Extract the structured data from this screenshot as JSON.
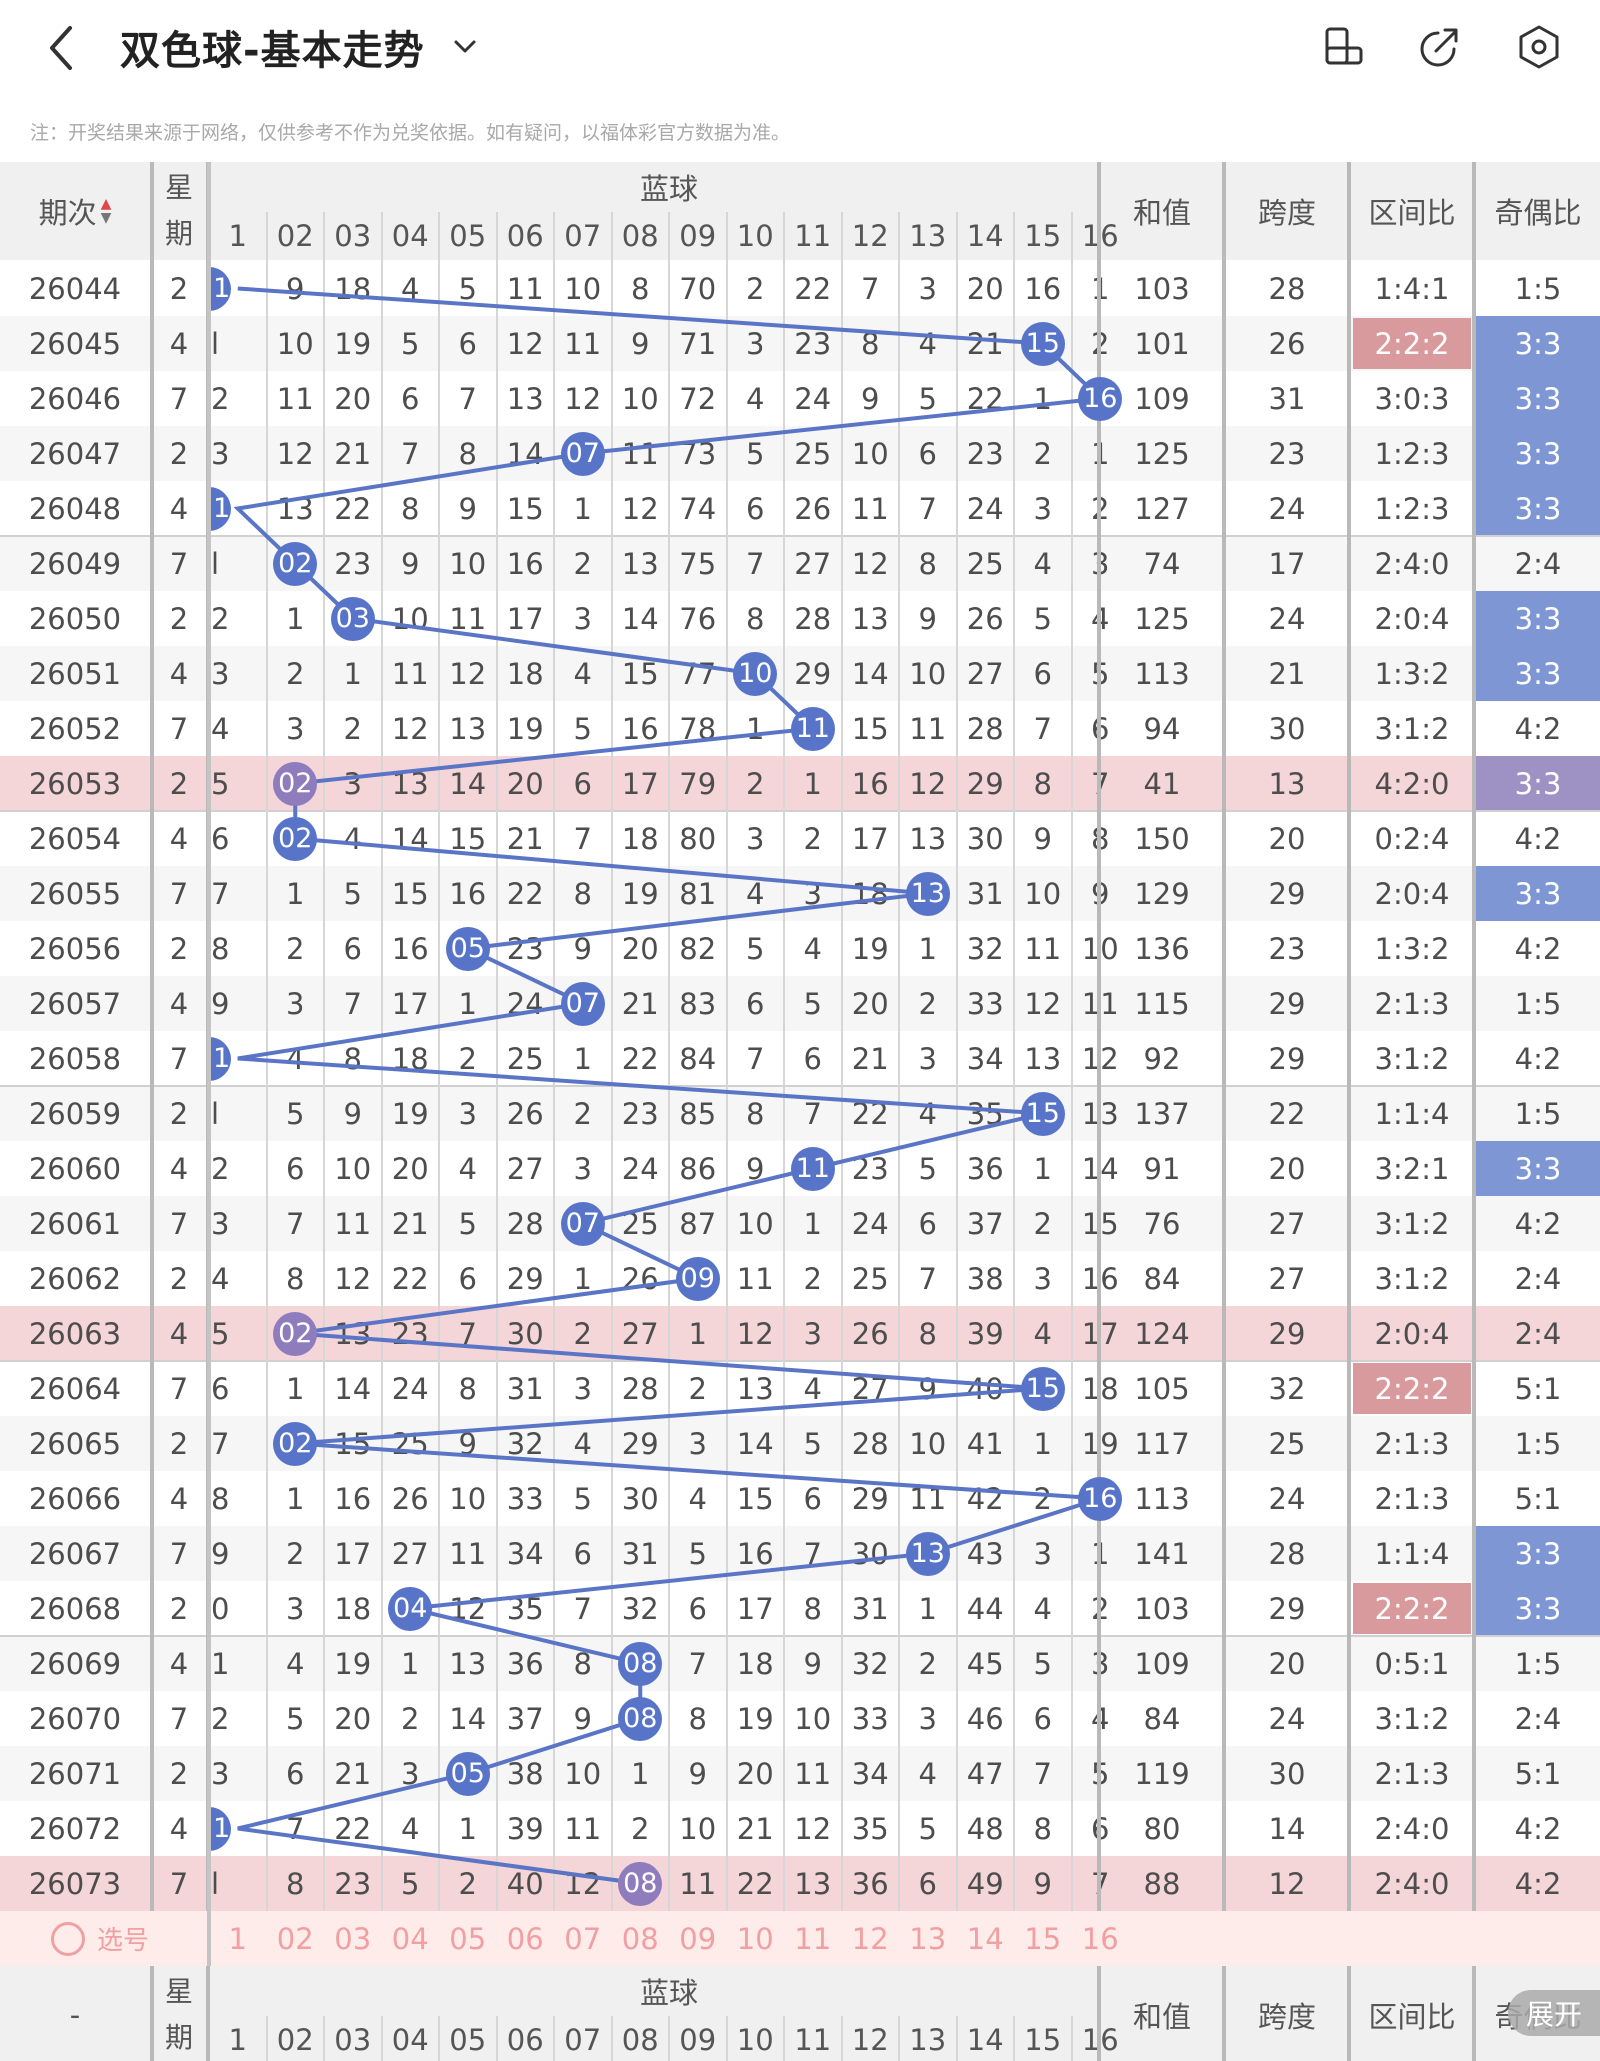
{
  "header": {
    "title": "双色球-基本走势",
    "notice": "注：开奖结果来源于网络，仅供参考不作为兑奖依据。如有疑问，以福体彩官方数据为准。"
  },
  "table": {
    "col_period": "期次",
    "col_weekday": "星期",
    "blue_group": "蓝球",
    "col_sum": "和值",
    "col_span": "跨度",
    "col_zone": "区间比",
    "col_oddeven": "奇偶比",
    "blue_cols": [
      "1",
      "02",
      "03",
      "04",
      "05",
      "06",
      "07",
      "08",
      "09",
      "10",
      "11",
      "12",
      "13",
      "14",
      "15",
      "16"
    ],
    "footer_period": "-",
    "select_label": "选号",
    "expand_label": "展开",
    "rows": [
      {
        "period": "26044",
        "weekday": "2",
        "blue": 1,
        "misses": [
          "",
          "9",
          "18",
          "4",
          "5",
          "11",
          "10",
          "8",
          "70",
          "2",
          "22",
          "7",
          "3",
          "20",
          "16",
          "1"
        ],
        "sum": "103",
        "span": "28",
        "zone": "1:4:1",
        "oe": "1:5",
        "hl": "",
        "zone_hl": "",
        "oe_hl": ""
      },
      {
        "period": "26045",
        "weekday": "4",
        "blue": 15,
        "misses": [
          "l",
          "10",
          "19",
          "5",
          "6",
          "12",
          "11",
          "9",
          "71",
          "3",
          "23",
          "8",
          "4",
          "21",
          "",
          "2"
        ],
        "sum": "101",
        "span": "26",
        "zone": "2:2:2",
        "oe": "3:3",
        "hl": "",
        "zone_hl": "red",
        "oe_hl": "blue"
      },
      {
        "period": "26046",
        "weekday": "7",
        "blue": 16,
        "misses": [
          "2",
          "11",
          "20",
          "6",
          "7",
          "13",
          "12",
          "10",
          "72",
          "4",
          "24",
          "9",
          "5",
          "22",
          "1",
          ""
        ],
        "sum": "109",
        "span": "31",
        "zone": "3:0:3",
        "oe": "3:3",
        "hl": "",
        "zone_hl": "",
        "oe_hl": "blue"
      },
      {
        "period": "26047",
        "weekday": "2",
        "blue": 7,
        "misses": [
          "3",
          "12",
          "21",
          "7",
          "8",
          "14",
          "",
          "11",
          "73",
          "5",
          "25",
          "10",
          "6",
          "23",
          "2",
          "1"
        ],
        "sum": "125",
        "span": "23",
        "zone": "1:2:3",
        "oe": "3:3",
        "hl": "",
        "zone_hl": "",
        "oe_hl": "blue"
      },
      {
        "period": "26048",
        "weekday": "4",
        "blue": 1,
        "misses": [
          "",
          "13",
          "22",
          "8",
          "9",
          "15",
          "1",
          "12",
          "74",
          "6",
          "26",
          "11",
          "7",
          "24",
          "3",
          "2"
        ],
        "sum": "127",
        "span": "24",
        "zone": "1:2:3",
        "oe": "3:3",
        "hl": "",
        "zone_hl": "",
        "oe_hl": "blue"
      },
      {
        "period": "26049",
        "weekday": "7",
        "blue": 2,
        "misses": [
          "l",
          "",
          "23",
          "9",
          "10",
          "16",
          "2",
          "13",
          "75",
          "7",
          "27",
          "12",
          "8",
          "25",
          "4",
          "3"
        ],
        "sum": "74",
        "span": "17",
        "zone": "2:4:0",
        "oe": "2:4",
        "hl": "",
        "zone_hl": "",
        "oe_hl": ""
      },
      {
        "period": "26050",
        "weekday": "2",
        "blue": 3,
        "misses": [
          "2",
          "1",
          "",
          "10",
          "11",
          "17",
          "3",
          "14",
          "76",
          "8",
          "28",
          "13",
          "9",
          "26",
          "5",
          "4"
        ],
        "sum": "125",
        "span": "24",
        "zone": "2:0:4",
        "oe": "3:3",
        "hl": "",
        "zone_hl": "",
        "oe_hl": "blue"
      },
      {
        "period": "26051",
        "weekday": "4",
        "blue": 10,
        "misses": [
          "3",
          "2",
          "1",
          "11",
          "12",
          "18",
          "4",
          "15",
          "77",
          "",
          "29",
          "14",
          "10",
          "27",
          "6",
          "5"
        ],
        "sum": "113",
        "span": "21",
        "zone": "1:3:2",
        "oe": "3:3",
        "hl": "",
        "zone_hl": "",
        "oe_hl": "blue"
      },
      {
        "period": "26052",
        "weekday": "7",
        "blue": 11,
        "misses": [
          "4",
          "3",
          "2",
          "12",
          "13",
          "19",
          "5",
          "16",
          "78",
          "1",
          "",
          "15",
          "11",
          "28",
          "7",
          "6"
        ],
        "sum": "94",
        "span": "30",
        "zone": "3:1:2",
        "oe": "4:2",
        "hl": "",
        "zone_hl": "",
        "oe_hl": ""
      },
      {
        "period": "26053",
        "weekday": "2",
        "blue": 2,
        "misses": [
          "5",
          "",
          "3",
          "13",
          "14",
          "20",
          "6",
          "17",
          "79",
          "2",
          "1",
          "16",
          "12",
          "29",
          "8",
          "7"
        ],
        "sum": "41",
        "span": "13",
        "zone": "4:2:0",
        "oe": "3:3",
        "hl": "pink",
        "zone_hl": "",
        "oe_hl": "purple"
      },
      {
        "period": "26054",
        "weekday": "4",
        "blue": 2,
        "misses": [
          "6",
          "",
          "4",
          "14",
          "15",
          "21",
          "7",
          "18",
          "80",
          "3",
          "2",
          "17",
          "13",
          "30",
          "9",
          "8"
        ],
        "sum": "150",
        "span": "20",
        "zone": "0:2:4",
        "oe": "4:2",
        "hl": "",
        "zone_hl": "",
        "oe_hl": ""
      },
      {
        "period": "26055",
        "weekday": "7",
        "blue": 13,
        "misses": [
          "7",
          "1",
          "5",
          "15",
          "16",
          "22",
          "8",
          "19",
          "81",
          "4",
          "3",
          "18",
          "",
          "31",
          "10",
          "9"
        ],
        "sum": "129",
        "span": "29",
        "zone": "2:0:4",
        "oe": "3:3",
        "hl": "",
        "zone_hl": "",
        "oe_hl": "blue"
      },
      {
        "period": "26056",
        "weekday": "2",
        "blue": 5,
        "misses": [
          "8",
          "2",
          "6",
          "16",
          "",
          "23",
          "9",
          "20",
          "82",
          "5",
          "4",
          "19",
          "1",
          "32",
          "11",
          "10"
        ],
        "sum": "136",
        "span": "23",
        "zone": "1:3:2",
        "oe": "4:2",
        "hl": "",
        "zone_hl": "",
        "oe_hl": ""
      },
      {
        "period": "26057",
        "weekday": "4",
        "blue": 7,
        "misses": [
          "9",
          "3",
          "7",
          "17",
          "1",
          "24",
          "",
          "21",
          "83",
          "6",
          "5",
          "20",
          "2",
          "33",
          "12",
          "11"
        ],
        "sum": "115",
        "span": "29",
        "zone": "2:1:3",
        "oe": "1:5",
        "hl": "",
        "zone_hl": "",
        "oe_hl": ""
      },
      {
        "period": "26058",
        "weekday": "7",
        "blue": 1,
        "misses": [
          "",
          "4",
          "8",
          "18",
          "2",
          "25",
          "1",
          "22",
          "84",
          "7",
          "6",
          "21",
          "3",
          "34",
          "13",
          "12"
        ],
        "sum": "92",
        "span": "29",
        "zone": "3:1:2",
        "oe": "4:2",
        "hl": "",
        "zone_hl": "",
        "oe_hl": ""
      },
      {
        "period": "26059",
        "weekday": "2",
        "blue": 15,
        "misses": [
          "l",
          "5",
          "9",
          "19",
          "3",
          "26",
          "2",
          "23",
          "85",
          "8",
          "7",
          "22",
          "4",
          "35",
          "",
          "13"
        ],
        "sum": "137",
        "span": "22",
        "zone": "1:1:4",
        "oe": "1:5",
        "hl": "",
        "zone_hl": "",
        "oe_hl": ""
      },
      {
        "period": "26060",
        "weekday": "4",
        "blue": 11,
        "misses": [
          "2",
          "6",
          "10",
          "20",
          "4",
          "27",
          "3",
          "24",
          "86",
          "9",
          "",
          "23",
          "5",
          "36",
          "1",
          "14"
        ],
        "sum": "91",
        "span": "20",
        "zone": "3:2:1",
        "oe": "3:3",
        "hl": "",
        "zone_hl": "",
        "oe_hl": "blue"
      },
      {
        "period": "26061",
        "weekday": "7",
        "blue": 7,
        "misses": [
          "3",
          "7",
          "11",
          "21",
          "5",
          "28",
          "",
          "25",
          "87",
          "10",
          "1",
          "24",
          "6",
          "37",
          "2",
          "15"
        ],
        "sum": "76",
        "span": "27",
        "zone": "3:1:2",
        "oe": "4:2",
        "hl": "",
        "zone_hl": "",
        "oe_hl": ""
      },
      {
        "period": "26062",
        "weekday": "2",
        "blue": 9,
        "misses": [
          "4",
          "8",
          "12",
          "22",
          "6",
          "29",
          "1",
          "26",
          "",
          "11",
          "2",
          "25",
          "7",
          "38",
          "3",
          "16"
        ],
        "sum": "84",
        "span": "27",
        "zone": "3:1:2",
        "oe": "2:4",
        "hl": "",
        "zone_hl": "",
        "oe_hl": ""
      },
      {
        "period": "26063",
        "weekday": "4",
        "blue": 2,
        "misses": [
          "5",
          "",
          "13",
          "23",
          "7",
          "30",
          "2",
          "27",
          "1",
          "12",
          "3",
          "26",
          "8",
          "39",
          "4",
          "17"
        ],
        "sum": "124",
        "span": "29",
        "zone": "2:0:4",
        "oe": "2:4",
        "hl": "pink",
        "zone_hl": "",
        "oe_hl": ""
      },
      {
        "period": "26064",
        "weekday": "7",
        "blue": 15,
        "misses": [
          "6",
          "1",
          "14",
          "24",
          "8",
          "31",
          "3",
          "28",
          "2",
          "13",
          "4",
          "27",
          "9",
          "40",
          "",
          "18"
        ],
        "sum": "105",
        "span": "32",
        "zone": "2:2:2",
        "oe": "5:1",
        "hl": "",
        "zone_hl": "red",
        "oe_hl": ""
      },
      {
        "period": "26065",
        "weekday": "2",
        "blue": 2,
        "misses": [
          "7",
          "",
          "15",
          "25",
          "9",
          "32",
          "4",
          "29",
          "3",
          "14",
          "5",
          "28",
          "10",
          "41",
          "1",
          "19"
        ],
        "sum": "117",
        "span": "25",
        "zone": "2:1:3",
        "oe": "1:5",
        "hl": "",
        "zone_hl": "",
        "oe_hl": ""
      },
      {
        "period": "26066",
        "weekday": "4",
        "blue": 16,
        "misses": [
          "8",
          "1",
          "16",
          "26",
          "10",
          "33",
          "5",
          "30",
          "4",
          "15",
          "6",
          "29",
          "11",
          "42",
          "2",
          ""
        ],
        "sum": "113",
        "span": "24",
        "zone": "2:1:3",
        "oe": "5:1",
        "hl": "",
        "zone_hl": "",
        "oe_hl": ""
      },
      {
        "period": "26067",
        "weekday": "7",
        "blue": 13,
        "misses": [
          "9",
          "2",
          "17",
          "27",
          "11",
          "34",
          "6",
          "31",
          "5",
          "16",
          "7",
          "30",
          "",
          "43",
          "3",
          "1"
        ],
        "sum": "141",
        "span": "28",
        "zone": "1:1:4",
        "oe": "3:3",
        "hl": "",
        "zone_hl": "",
        "oe_hl": "blue"
      },
      {
        "period": "26068",
        "weekday": "2",
        "blue": 4,
        "misses": [
          "0",
          "3",
          "18",
          "",
          "12",
          "35",
          "7",
          "32",
          "6",
          "17",
          "8",
          "31",
          "1",
          "44",
          "4",
          "2"
        ],
        "sum": "103",
        "span": "29",
        "zone": "2:2:2",
        "oe": "3:3",
        "hl": "",
        "zone_hl": "red",
        "oe_hl": "blue"
      },
      {
        "period": "26069",
        "weekday": "4",
        "blue": 8,
        "misses": [
          "1",
          "4",
          "19",
          "1",
          "13",
          "36",
          "8",
          "",
          "7",
          "18",
          "9",
          "32",
          "2",
          "45",
          "5",
          "3"
        ],
        "sum": "109",
        "span": "20",
        "zone": "0:5:1",
        "oe": "1:5",
        "hl": "",
        "zone_hl": "",
        "oe_hl": ""
      },
      {
        "period": "26070",
        "weekday": "7",
        "blue": 8,
        "misses": [
          "2",
          "5",
          "20",
          "2",
          "14",
          "37",
          "9",
          "",
          "8",
          "19",
          "10",
          "33",
          "3",
          "46",
          "6",
          "4"
        ],
        "sum": "84",
        "span": "24",
        "zone": "3:1:2",
        "oe": "2:4",
        "hl": "",
        "zone_hl": "",
        "oe_hl": ""
      },
      {
        "period": "26071",
        "weekday": "2",
        "blue": 5,
        "misses": [
          "3",
          "6",
          "21",
          "3",
          "",
          "38",
          "10",
          "1",
          "9",
          "20",
          "11",
          "34",
          "4",
          "47",
          "7",
          "5"
        ],
        "sum": "119",
        "span": "30",
        "zone": "2:1:3",
        "oe": "5:1",
        "hl": "",
        "zone_hl": "",
        "oe_hl": ""
      },
      {
        "period": "26072",
        "weekday": "4",
        "blue": 1,
        "misses": [
          "",
          "7",
          "22",
          "4",
          "1",
          "39",
          "11",
          "2",
          "10",
          "21",
          "12",
          "35",
          "5",
          "48",
          "8",
          "6"
        ],
        "sum": "80",
        "span": "14",
        "zone": "2:4:0",
        "oe": "4:2",
        "hl": "",
        "zone_hl": "",
        "oe_hl": ""
      },
      {
        "period": "26073",
        "weekday": "7",
        "blue": 8,
        "misses": [
          "l",
          "8",
          "23",
          "5",
          "2",
          "40",
          "12",
          "",
          "11",
          "22",
          "13",
          "36",
          "6",
          "49",
          "9",
          "7"
        ],
        "sum": "88",
        "span": "12",
        "zone": "2:4:0",
        "oe": "4:2",
        "hl": "pink",
        "zone_hl": "",
        "oe_hl": ""
      }
    ]
  },
  "colors": {
    "ball": "#5774c8",
    "line": "#5a75c6",
    "row_pink": "#f4d5d8",
    "zone_red": "#d99a9e",
    "oe_blue": "#7e97d4",
    "oe_purple": "#9e92c5"
  },
  "icons": [
    "back-arrow-icon",
    "chevron-down-icon",
    "rotate-screen-icon",
    "share-icon",
    "settings-icon",
    "circle-select-icon"
  ]
}
